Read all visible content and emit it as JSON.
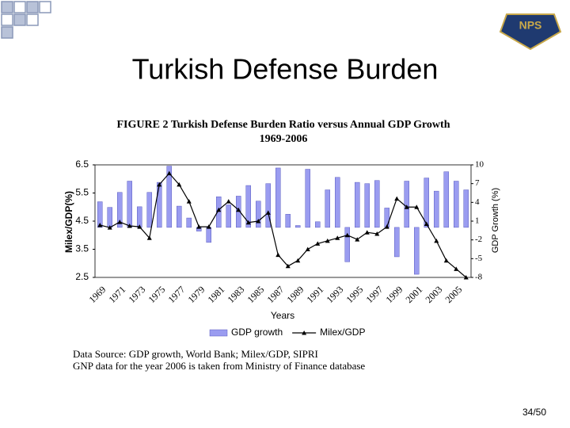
{
  "slide_title": "Turkish Defense Burden",
  "logo_text": "NPS",
  "page_number": "34/50",
  "notes": [
    "Data Source: GDP growth, World Bank; Milex/GDP, SIPRI",
    "GNP data for the year 2006 is taken from Ministry of Finance database"
  ],
  "chart_data": {
    "type": "bar_line",
    "title": "FIGURE 2 Turkish Defense Burden Ratio versus Annual GDP Growth",
    "subtitle": "1969-2006",
    "x_label": "Years",
    "y_label": "Milex/GDP(%)",
    "y2_label": "GDP Growth (%)",
    "categories": [
      "1969",
      null,
      "1971",
      null,
      "1973",
      null,
      "1975",
      null,
      "1977",
      null,
      "1979",
      null,
      "1981",
      null,
      "1983",
      null,
      "1985",
      null,
      "1987",
      null,
      "1989",
      null,
      "1991",
      null,
      "1993",
      null,
      "1995",
      null,
      "1997",
      null,
      "1999",
      null,
      "2001",
      null,
      "2003",
      null,
      "2005",
      null
    ],
    "series": [
      {
        "name": "GDP growth",
        "type": "bar",
        "axis": "y2",
        "color": "#9a9cf0",
        "values": [
          4.1,
          3.2,
          5.6,
          7.4,
          3.3,
          5.6,
          7.2,
          9.8,
          3.4,
          1.5,
          -0.6,
          -2.4,
          4.9,
          3.6,
          5.0,
          6.7,
          4.2,
          7.0,
          9.5,
          2.1,
          0.3,
          9.3,
          0.9,
          6.0,
          8.0,
          -5.5,
          7.2,
          7.0,
          7.5,
          3.1,
          -4.7,
          7.4,
          -7.5,
          7.9,
          5.8,
          8.9,
          7.4,
          6.0
        ]
      },
      {
        "name": "Milex/GDP",
        "type": "line",
        "axis": "y",
        "color": "#000000",
        "values": [
          4.36,
          4.27,
          4.47,
          4.33,
          4.3,
          3.9,
          5.8,
          6.2,
          5.8,
          5.2,
          4.3,
          4.3,
          4.9,
          5.2,
          4.9,
          4.45,
          4.5,
          4.8,
          3.3,
          2.9,
          3.1,
          3.5,
          3.7,
          3.8,
          3.9,
          4.0,
          3.85,
          4.1,
          4.05,
          4.3,
          5.3,
          5.0,
          5.0,
          4.4,
          3.8,
          3.1,
          2.8,
          2.5
        ]
      }
    ],
    "ylim": [
      2.5,
      6.5
    ],
    "yticks": [
      2.5,
      3.5,
      4.5,
      5.5,
      6.5
    ],
    "y2lim": [
      -8,
      10
    ],
    "y2ticks": [
      10,
      7,
      4,
      1,
      -2,
      -5,
      -8
    ],
    "legend": "bottom"
  }
}
